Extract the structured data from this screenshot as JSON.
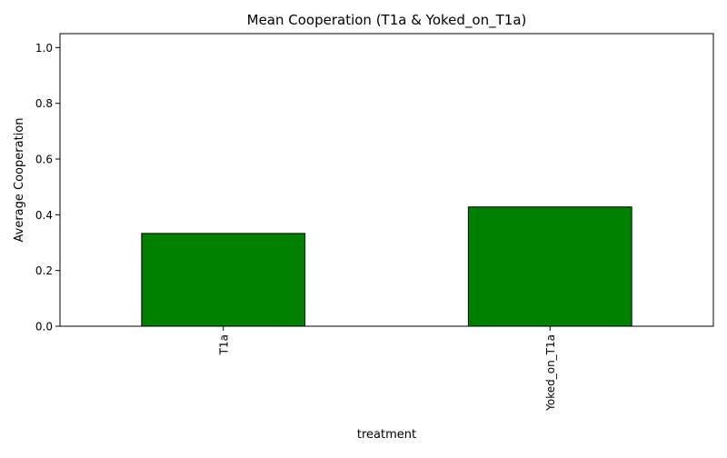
{
  "chart_data": {
    "type": "bar",
    "title": "Mean Cooperation (T1a & Yoked_on_T1a)",
    "xlabel": "treatment",
    "ylabel": "Average Cooperation",
    "categories": [
      "T1a",
      "Yoked_on_T1a"
    ],
    "values": [
      0.333,
      0.428
    ],
    "ylim": [
      0,
      1.05
    ],
    "yticks": [
      0.0,
      0.2,
      0.4,
      0.6,
      0.8,
      1.0
    ],
    "ytick_labels": [
      "0.0",
      "0.2",
      "0.4",
      "0.6",
      "0.8",
      "1.0"
    ],
    "bar_color": "#008000",
    "edge_color": "#000000",
    "grid": false,
    "legend": "none"
  }
}
